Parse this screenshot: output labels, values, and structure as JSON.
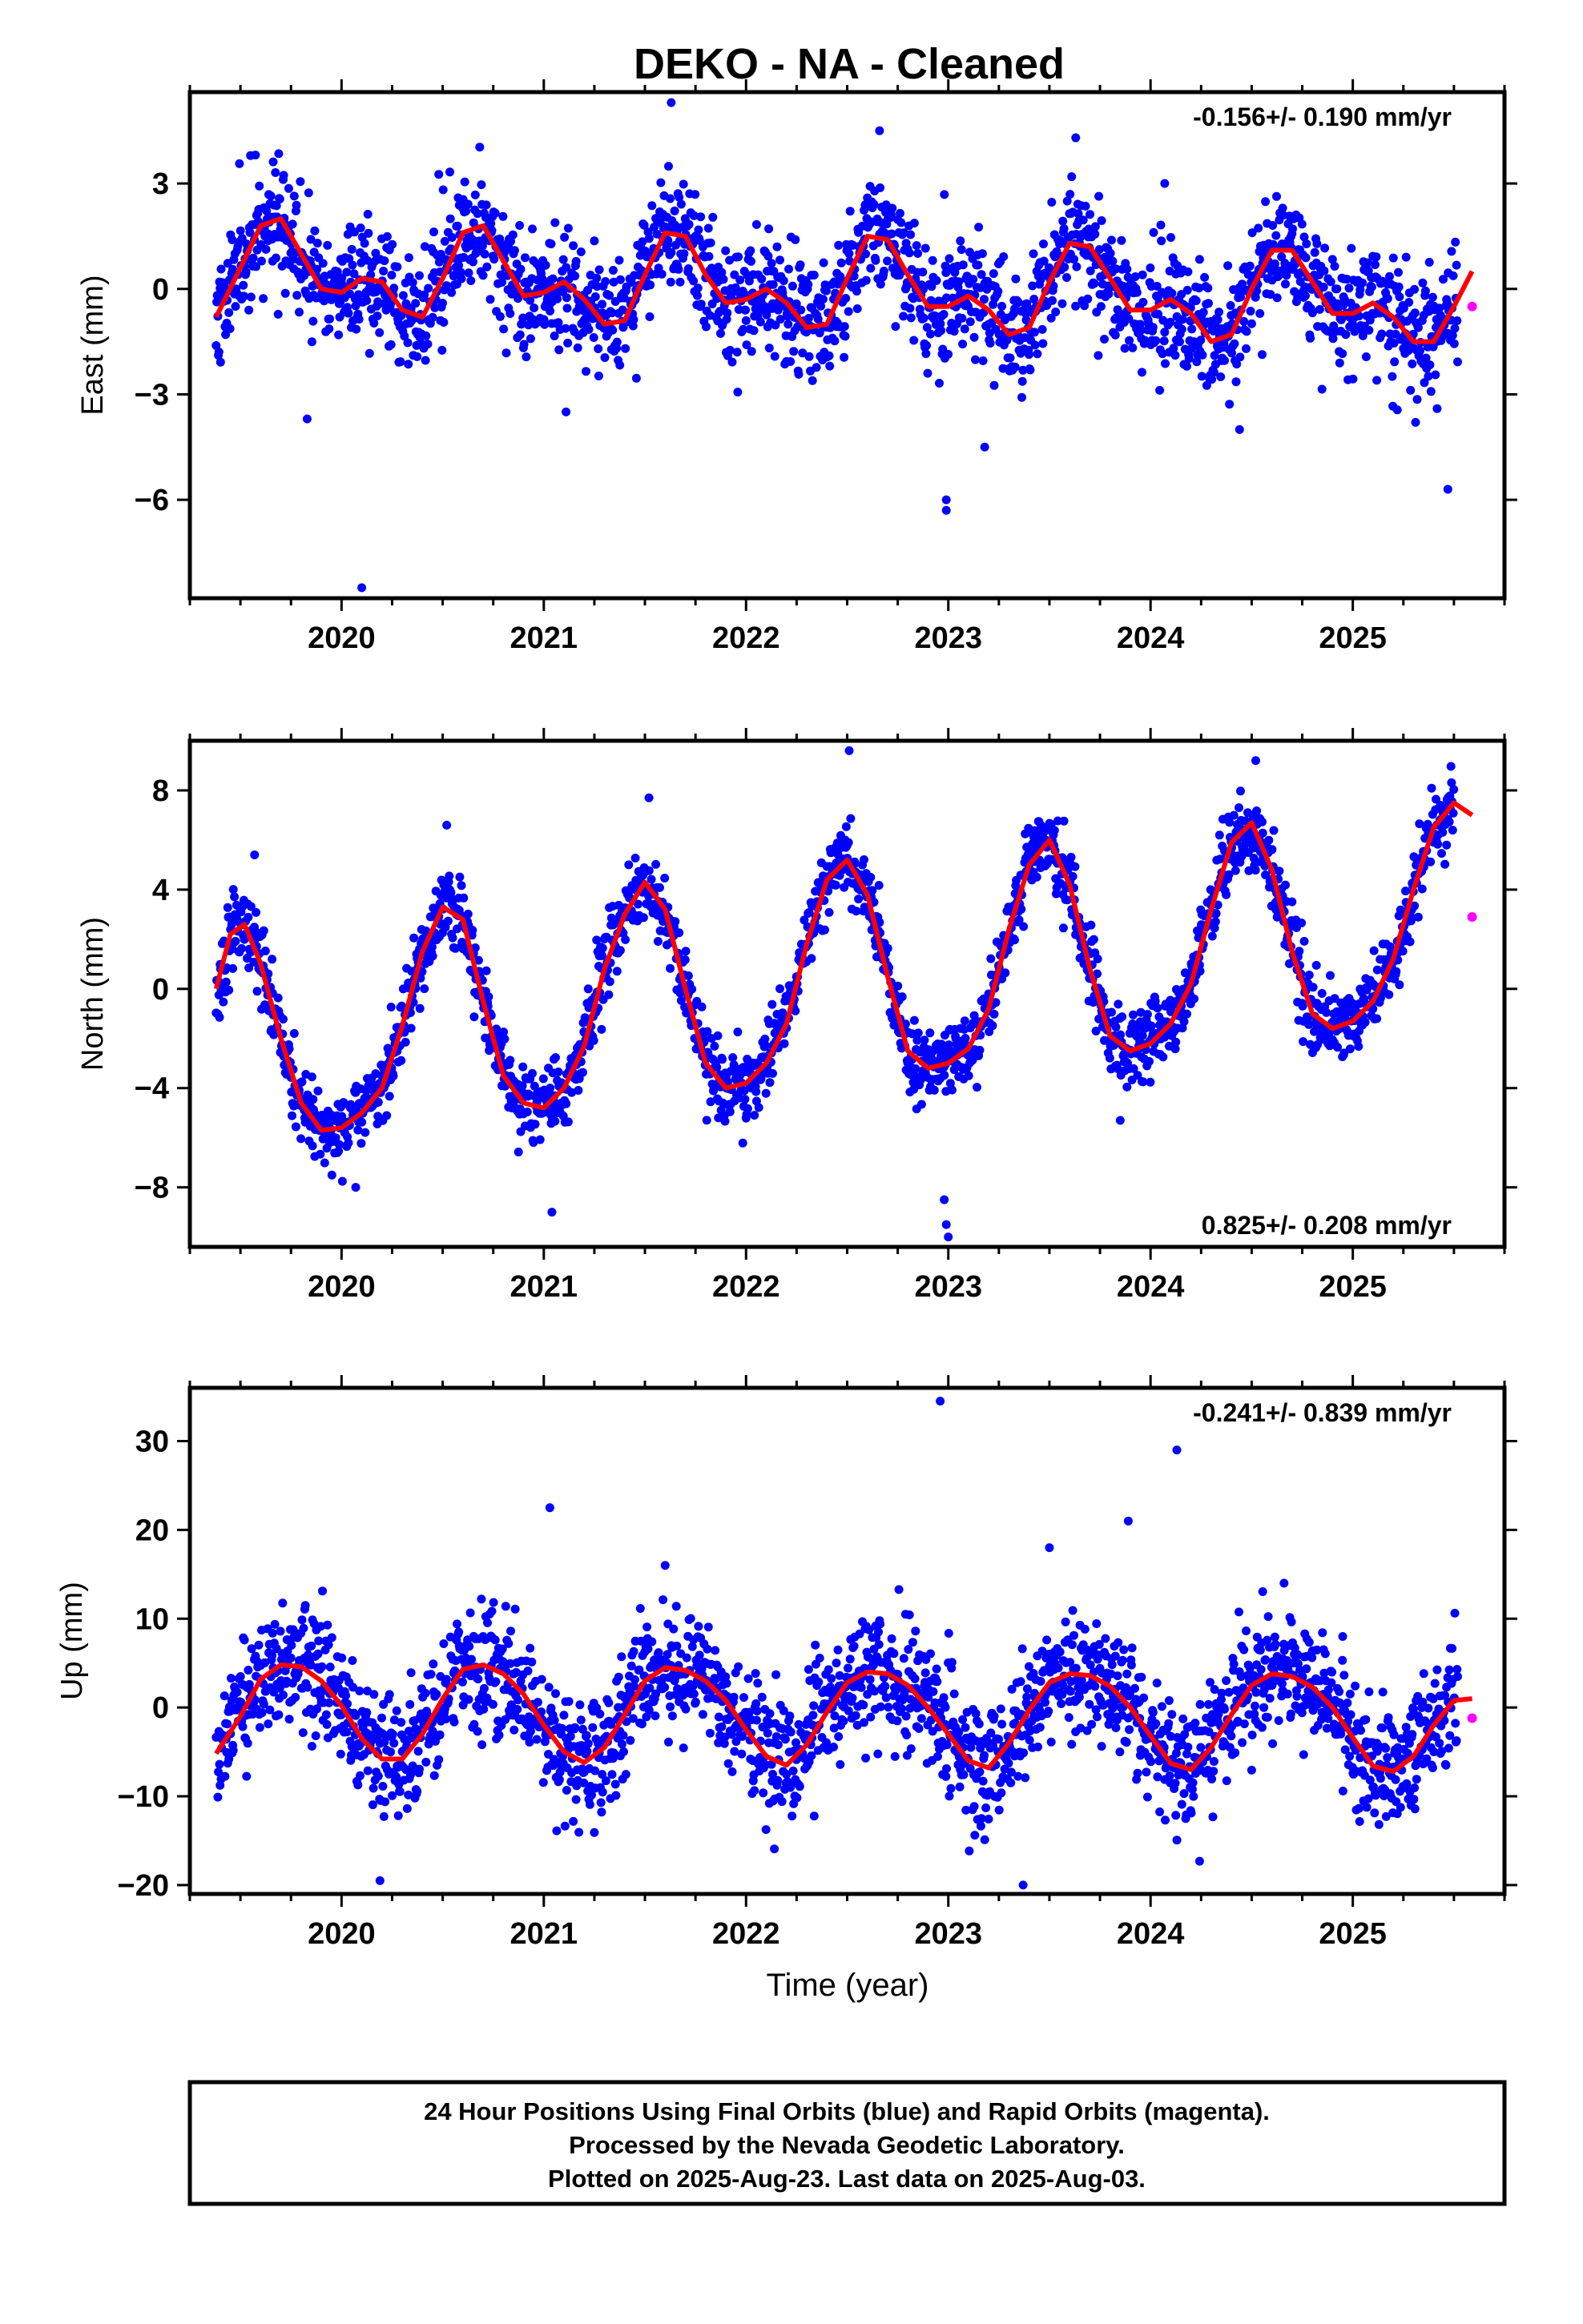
{
  "title": "DEKO  - NA - Cleaned",
  "xlabel": "Time (year)",
  "footer": [
    "24 Hour Positions Using Final Orbits (blue) and Rapid Orbits (magenta).",
    "Processed by the Nevada Geodetic Laboratory.",
    "Plotted on 2025-Aug-23. Last data on 2025-Aug-03."
  ],
  "colors": {
    "final": "#0000ff",
    "rapid": "#ff00ff",
    "model": "#ff0000"
  },
  "chart_data": [
    {
      "type": "scatter",
      "component": "east",
      "ylabel": "East (mm)",
      "rate_label": "-0.156+/- 0.190 mm/yr",
      "rate_position": "top-right",
      "xlim": [
        2019.25,
        2025.75
      ],
      "ylim": [
        -8.8,
        5.6
      ],
      "xticks": [
        2020,
        2021,
        2022,
        2023,
        2024,
        2025
      ],
      "xtick_labels": [
        "2020",
        "2021",
        "2022",
        "2023",
        "2024",
        "2025"
      ],
      "yticks": [
        -6,
        -3,
        0,
        3
      ],
      "ytick_labels": [
        "−6",
        "−3",
        "0",
        "3"
      ],
      "model_curve": {
        "x": [
          2019.38,
          2019.5,
          2019.6,
          2019.7,
          2019.8,
          2019.9,
          2020.0,
          2020.1,
          2020.2,
          2020.3,
          2020.4,
          2020.5,
          2020.6,
          2020.7,
          2020.8,
          2020.9,
          2021.0,
          2021.1,
          2021.2,
          2021.3,
          2021.4,
          2021.5,
          2021.6,
          2021.7,
          2021.8,
          2021.9,
          2022.0,
          2022.1,
          2022.2,
          2022.3,
          2022.4,
          2022.5,
          2022.6,
          2022.7,
          2022.8,
          2022.9,
          2023.0,
          2023.1,
          2023.2,
          2023.3,
          2023.4,
          2023.5,
          2023.6,
          2023.7,
          2023.8,
          2023.9,
          2024.0,
          2024.1,
          2024.2,
          2024.3,
          2024.4,
          2024.5,
          2024.6,
          2024.7,
          2024.8,
          2024.9,
          2025.0,
          2025.1,
          2025.2,
          2025.3,
          2025.4,
          2025.5,
          2025.59
        ],
        "y": [
          -0.8,
          0.6,
          1.8,
          2.0,
          1.0,
          0.0,
          -0.1,
          0.3,
          0.2,
          -0.6,
          -0.8,
          0.3,
          1.6,
          1.8,
          0.8,
          -0.2,
          -0.1,
          0.2,
          -0.3,
          -1.0,
          -0.9,
          0.4,
          1.6,
          1.5,
          0.4,
          -0.4,
          -0.3,
          0.0,
          -0.4,
          -1.1,
          -1.0,
          0.3,
          1.5,
          1.4,
          0.4,
          -0.5,
          -0.5,
          -0.2,
          -0.6,
          -1.3,
          -1.1,
          0.2,
          1.3,
          1.2,
          0.3,
          -0.6,
          -0.6,
          -0.3,
          -0.7,
          -1.5,
          -1.3,
          0.0,
          1.1,
          1.1,
          0.2,
          -0.7,
          -0.7,
          -0.4,
          -0.8,
          -1.5,
          -1.5,
          -0.5,
          0.5
        ]
      },
      "outliers": [
        [
          2019.83,
          -3.7
        ],
        [
          2020.1,
          -8.5
        ],
        [
          2021.11,
          -3.5
        ],
        [
          2021.63,
          5.3
        ],
        [
          2022.66,
          4.5
        ],
        [
          2022.99,
          -6.0
        ],
        [
          2022.99,
          -6.3
        ],
        [
          2023.18,
          -4.5
        ],
        [
          2023.63,
          4.3
        ],
        [
          2024.07,
          3.0
        ],
        [
          2024.44,
          -4.0
        ],
        [
          2025.47,
          -5.7
        ]
      ],
      "rapid": [
        [
          2025.59,
          -0.5
        ]
      ]
    },
    {
      "type": "scatter",
      "component": "north",
      "ylabel": "North (mm)",
      "rate_label": "0.825+/- 0.208 mm/yr",
      "rate_position": "bottom-right",
      "xlim": [
        2019.25,
        2025.75
      ],
      "ylim": [
        -10.4,
        10.0
      ],
      "xticks": [
        2020,
        2021,
        2022,
        2023,
        2024,
        2025
      ],
      "xtick_labels": [
        "2020",
        "2021",
        "2022",
        "2023",
        "2024",
        "2025"
      ],
      "yticks": [
        -8,
        -4,
        0,
        4,
        8
      ],
      "ytick_labels": [
        "−8",
        "−4",
        "0",
        "4",
        "8"
      ],
      "model_curve": {
        "x": [
          2019.38,
          2019.45,
          2019.52,
          2019.6,
          2019.7,
          2019.8,
          2019.9,
          2020.0,
          2020.1,
          2020.2,
          2020.3,
          2020.4,
          2020.5,
          2020.6,
          2020.7,
          2020.8,
          2020.9,
          2021.0,
          2021.1,
          2021.2,
          2021.3,
          2021.4,
          2021.5,
          2021.6,
          2021.7,
          2021.8,
          2021.9,
          2022.0,
          2022.1,
          2022.2,
          2022.3,
          2022.4,
          2022.5,
          2022.6,
          2022.7,
          2022.8,
          2022.9,
          2023.0,
          2023.1,
          2023.2,
          2023.3,
          2023.4,
          2023.5,
          2023.6,
          2023.7,
          2023.8,
          2023.9,
          2024.0,
          2024.1,
          2024.2,
          2024.3,
          2024.4,
          2024.5,
          2024.6,
          2024.7,
          2024.8,
          2024.9,
          2025.0,
          2025.1,
          2025.2,
          2025.3,
          2025.4,
          2025.5,
          2025.59
        ],
        "y": [
          0.0,
          2.2,
          2.6,
          1.0,
          -2.0,
          -4.6,
          -5.7,
          -5.6,
          -5.0,
          -4.0,
          -1.5,
          1.5,
          3.3,
          2.8,
          -0.5,
          -3.5,
          -4.6,
          -4.8,
          -4.0,
          -2.3,
          0.8,
          3.0,
          4.3,
          3.2,
          0.0,
          -3.0,
          -4.0,
          -3.8,
          -3.0,
          -1.4,
          1.8,
          4.4,
          5.2,
          3.8,
          0.5,
          -2.5,
          -3.2,
          -3.0,
          -2.4,
          -0.8,
          2.4,
          5.0,
          6.0,
          4.2,
          0.8,
          -1.9,
          -2.5,
          -2.2,
          -1.4,
          0.2,
          3.2,
          5.9,
          6.7,
          4.8,
          1.5,
          -1.0,
          -1.6,
          -1.3,
          -0.5,
          1.2,
          4.0,
          6.5,
          7.5,
          7.0
        ]
      },
      "outliers": [
        [
          2019.57,
          5.4
        ],
        [
          2020.07,
          -8.0
        ],
        [
          2020.52,
          6.6
        ],
        [
          2021.04,
          -9.0
        ],
        [
          2021.52,
          7.7
        ],
        [
          2022.51,
          9.6
        ],
        [
          2022.98,
          -8.5
        ],
        [
          2022.99,
          -9.5
        ],
        [
          2023.0,
          -10.0
        ],
        [
          2023.85,
          -5.3
        ],
        [
          2024.52,
          9.2
        ]
      ],
      "rapid": [
        [
          2025.59,
          2.9
        ]
      ]
    },
    {
      "type": "scatter",
      "component": "up",
      "ylabel": "Up (mm)",
      "rate_label": "-0.241+/- 0.839 mm/yr",
      "rate_position": "top-right",
      "xlim": [
        2019.25,
        2025.75
      ],
      "ylim": [
        -21,
        36
      ],
      "xticks": [
        2020,
        2021,
        2022,
        2023,
        2024,
        2025
      ],
      "xtick_labels": [
        "2020",
        "2021",
        "2022",
        "2023",
        "2024",
        "2025"
      ],
      "yticks": [
        -20,
        -10,
        0,
        10,
        20,
        30
      ],
      "ytick_labels": [
        "−20",
        "−10",
        "0",
        "10",
        "20",
        "30"
      ],
      "model_curve": {
        "x": [
          2019.38,
          2019.5,
          2019.6,
          2019.7,
          2019.8,
          2019.9,
          2020.0,
          2020.1,
          2020.2,
          2020.3,
          2020.4,
          2020.5,
          2020.6,
          2020.7,
          2020.8,
          2020.9,
          2021.0,
          2021.1,
          2021.2,
          2021.3,
          2021.4,
          2021.5,
          2021.6,
          2021.7,
          2021.8,
          2021.9,
          2022.0,
          2022.1,
          2022.2,
          2022.3,
          2022.4,
          2022.5,
          2022.6,
          2022.7,
          2022.8,
          2022.9,
          2023.0,
          2023.1,
          2023.2,
          2023.3,
          2023.4,
          2023.5,
          2023.6,
          2023.7,
          2023.8,
          2023.9,
          2024.0,
          2024.1,
          2024.2,
          2024.3,
          2024.4,
          2024.5,
          2024.6,
          2024.7,
          2024.8,
          2024.9,
          2025.0,
          2025.1,
          2025.2,
          2025.3,
          2025.4,
          2025.5,
          2025.59
        ],
        "y": [
          -5.2,
          -1.0,
          3.2,
          4.8,
          4.6,
          3.0,
          0.2,
          -3.5,
          -5.8,
          -5.8,
          -3.0,
          1.0,
          4.3,
          4.8,
          3.8,
          1.5,
          -2.0,
          -5.0,
          -6.2,
          -4.5,
          -0.8,
          3.0,
          4.5,
          4.2,
          3.0,
          0.8,
          -2.5,
          -5.5,
          -6.5,
          -4.2,
          -0.5,
          2.8,
          4.0,
          3.8,
          2.5,
          0.0,
          -3.0,
          -6.0,
          -6.8,
          -4.0,
          -0.3,
          2.8,
          3.8,
          3.6,
          2.4,
          0.0,
          -3.2,
          -6.3,
          -7.0,
          -4.5,
          -0.8,
          2.5,
          3.8,
          3.5,
          2.3,
          0.0,
          -3.4,
          -6.6,
          -7.2,
          -5.5,
          -2.0,
          0.8,
          1.0
        ]
      },
      "outliers": [
        [
          2020.19,
          -19.5
        ],
        [
          2021.03,
          22.5
        ],
        [
          2021.6,
          16.0
        ],
        [
          2022.96,
          34.5
        ],
        [
          2023.5,
          18.0
        ],
        [
          2023.89,
          21.0
        ],
        [
          2024.13,
          29.0
        ],
        [
          2024.66,
          14.0
        ],
        [
          2023.37,
          -20.0
        ],
        [
          2024.95,
          8.0
        ]
      ],
      "rapid": [
        [
          2025.59,
          -1.2
        ]
      ]
    }
  ]
}
